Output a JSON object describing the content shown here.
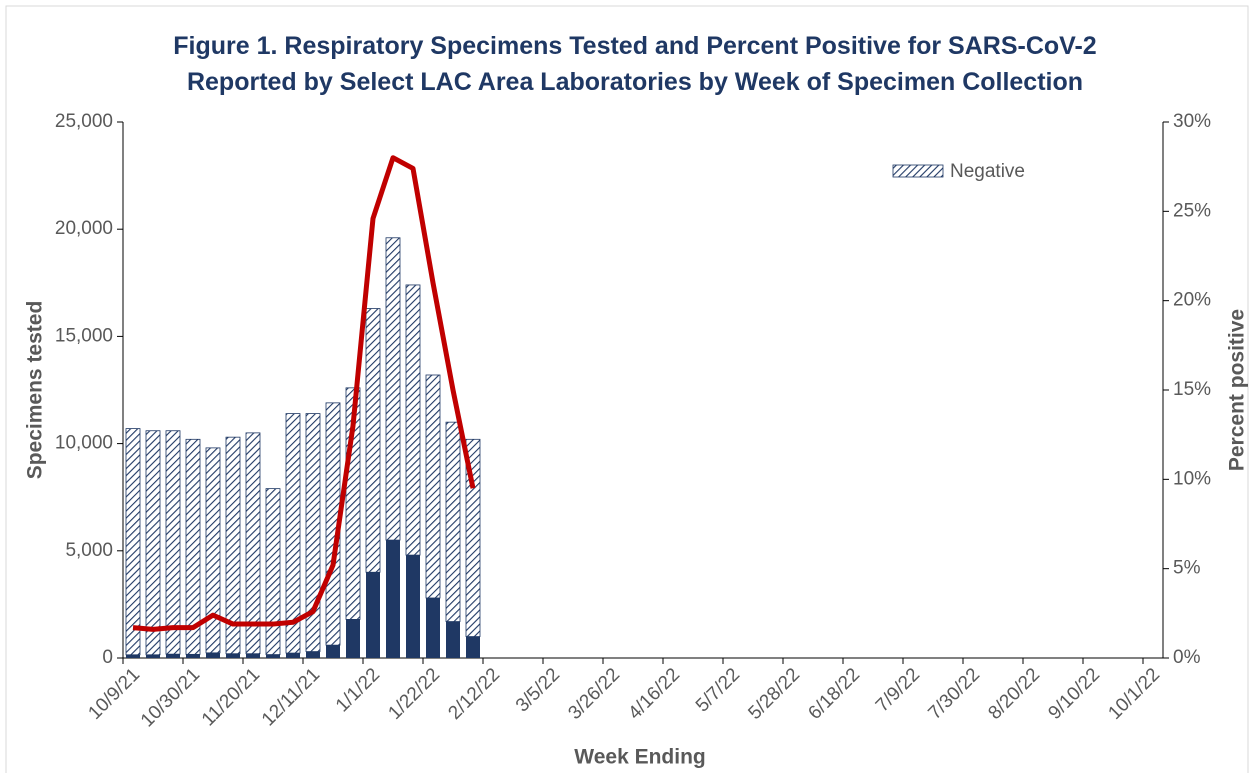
{
  "chart_data": {
    "type": "bar",
    "title": "Figure 1. Respiratory Specimens Tested and Percent Positive for SARS-CoV-2 Reported by Select LAC Area Laboratories by Week of Specimen Collection",
    "x_label": "Week Ending",
    "y_label": "Specimens tested",
    "y2_label": "Percent positive",
    "stacked": true,
    "categories": [
      "10/9/21",
      null,
      null,
      "10/30/21",
      null,
      null,
      "11/20/21",
      null,
      null,
      "12/11/21",
      null,
      null,
      "1/1/22",
      null,
      null,
      "1/22/22",
      null,
      null,
      "2/12/22",
      null,
      null,
      "3/5/22",
      null,
      null,
      "3/26/22",
      null,
      null,
      "4/16/22",
      null,
      null,
      "5/7/22",
      null,
      null,
      "5/28/22",
      null,
      null,
      "6/18/22",
      null,
      null,
      "7/9/22",
      null,
      null,
      "7/30/22",
      null,
      null,
      "8/20/22",
      null,
      null,
      "9/10/22",
      null,
      null,
      "10/1/22"
    ],
    "series": [
      {
        "color": "#1f3864",
        "values": [
          150,
          150,
          180,
          170,
          240,
          200,
          200,
          160,
          230,
          300,
          600,
          1800,
          4000,
          5500,
          4800,
          2800,
          1700,
          1000,
          null,
          null,
          null,
          null,
          null,
          null,
          null,
          null,
          null,
          null,
          null,
          null,
          null,
          null,
          null,
          null,
          null,
          null,
          null,
          null,
          null,
          null,
          null,
          null,
          null,
          null,
          null,
          null,
          null,
          null,
          null,
          null,
          null,
          null
        ]
      },
      {
        "name": "Negative",
        "color": "#1f3864",
        "values": [
          10550,
          10450,
          10420,
          10030,
          9560,
          10100,
          10300,
          7740,
          11170,
          11100,
          11300,
          10800,
          12300,
          14100,
          12600,
          10400,
          9300,
          9200,
          null,
          null,
          null,
          null,
          null,
          null,
          null,
          null,
          null,
          null,
          null,
          null,
          null,
          null,
          null,
          null,
          null,
          null,
          null,
          null,
          null,
          null,
          null,
          null,
          null,
          null,
          null,
          null,
          null,
          null,
          null,
          null,
          null,
          null
        ]
      },
      {
        "type": "line",
        "axis": "y2",
        "color": "#c00000",
        "values": [
          1.7,
          1.6,
          1.7,
          1.7,
          2.4,
          1.9,
          1.9,
          1.9,
          2.0,
          2.6,
          5.2,
          13,
          24.6,
          28,
          27.4,
          21,
          15,
          9.5,
          null,
          null,
          null,
          null,
          null,
          null,
          null,
          null,
          null,
          null,
          null,
          null,
          null,
          null,
          null,
          null,
          null,
          null,
          null,
          null,
          null,
          null,
          null,
          null,
          null,
          null,
          null,
          null,
          null,
          null,
          null,
          null,
          null,
          null
        ]
      }
    ],
    "ylim": [
      0,
      25000
    ],
    "yticks": [
      0,
      {
        "value": 5000,
        "label": "5,000"
      },
      {
        "value": 10000,
        "label": "10,000"
      },
      {
        "value": 15000,
        "label": "15,000"
      },
      {
        "value": 20000,
        "label": "20,000"
      },
      {
        "value": 25000,
        "label": "25,000"
      }
    ],
    "y2lim": [
      0,
      30
    ],
    "y2ticks": [
      {
        "value": 0,
        "label": "0%"
      },
      {
        "value": 5,
        "label": "5%"
      },
      {
        "value": 10,
        "label": "10%"
      },
      {
        "value": 15,
        "label": "15%"
      },
      {
        "value": 20,
        "label": "20%"
      },
      {
        "value": 25,
        "label": "25%"
      },
      {
        "value": 30,
        "label": "30%"
      }
    ]
  }
}
